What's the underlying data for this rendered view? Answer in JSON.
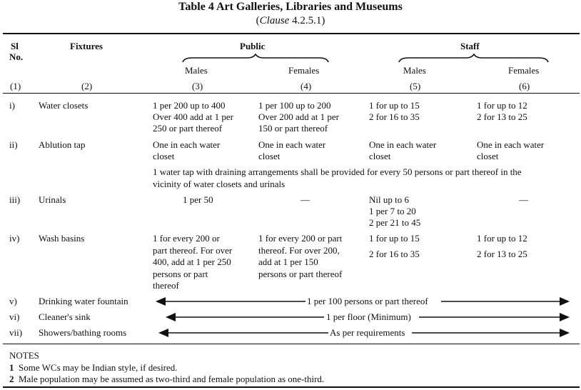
{
  "title": "Table 4 Art Galleries, Libraries and Museums",
  "subtitle_italic": "Clause",
  "subtitle_rest": " 4.2.5.1)",
  "subtitle_open": "(",
  "header": {
    "sl": "Sl",
    "no": "No.",
    "fixtures": "Fixtures",
    "public": "Public",
    "staff": "Staff",
    "males": "Males",
    "females": "Females",
    "col_nums": [
      "(1)",
      "(2)",
      "(3)",
      "(4)",
      "(5)",
      "(6)"
    ]
  },
  "rows": {
    "r1": {
      "sl": "i)",
      "fixture": "Water closets",
      "pub_m": [
        "1 per 200 up to 400",
        "Over 400 add at 1 per",
        "250 or part thereof"
      ],
      "pub_f": [
        "1 per 100 up to 200",
        "Over 200 add at 1 per",
        "150 or part thereof"
      ],
      "staff_m": [
        "1 for up to 15",
        "2 for 16 to 35"
      ],
      "staff_f": [
        "1 for up to 12",
        "2 for 13 to 25"
      ]
    },
    "r2": {
      "sl": "ii)",
      "fixture": "Ablution tap",
      "pub_m": [
        "One in each water",
        "closet"
      ],
      "pub_f": [
        "One in each water",
        "closet"
      ],
      "staff_m": [
        "One in each water",
        "closet"
      ],
      "staff_f": [
        "One in each water",
        "closet"
      ],
      "note": [
        "1 water tap with draining arrangements shall be provided for every 50 persons or part thereof in the",
        "vicinity of water closets and urinals"
      ]
    },
    "r3": {
      "sl": "iii)",
      "fixture": "Urinals",
      "pub_m": "1 per 50",
      "pub_f": "—",
      "staff_m": [
        "Nil up to 6",
        "1 per 7 to 20",
        "2 per 21 to 45"
      ],
      "staff_f": "—"
    },
    "r4": {
      "sl": "iv)",
      "fixture": "Wash basins",
      "pub_m": [
        "1 for every 200 or",
        "part thereof.  For over",
        "400, add at 1 per 250",
        "persons or part",
        "thereof"
      ],
      "pub_f": [
        "1 for every 200 or part",
        "thereof.  For over 200,",
        "add at 1 per 150",
        "persons or part thereof"
      ],
      "staff_m": [
        "1 for up to 15",
        "2 for 16 to 35"
      ],
      "staff_f": [
        "1 for up to 12",
        "2 for 13 to 25"
      ]
    },
    "r5": {
      "sl": "v)",
      "fixture": "Drinking water fountain",
      "span": "1 per 100 persons or part thereof"
    },
    "r6": {
      "sl": "vi)",
      "fixture": "Cleaner's sink",
      "span": "1 per floor  (Minimum)"
    },
    "r7": {
      "sl": "vii)",
      "fixture": "Showers/bathing rooms",
      "span": "As per requirements"
    }
  },
  "notes": {
    "heading": "NOTES",
    "n1_num": "1",
    "n1": "Some WCs may be Indian style, if desired.",
    "n2_num": "2",
    "n2": "Male population may be assumed as two-third and female population as one-third."
  }
}
